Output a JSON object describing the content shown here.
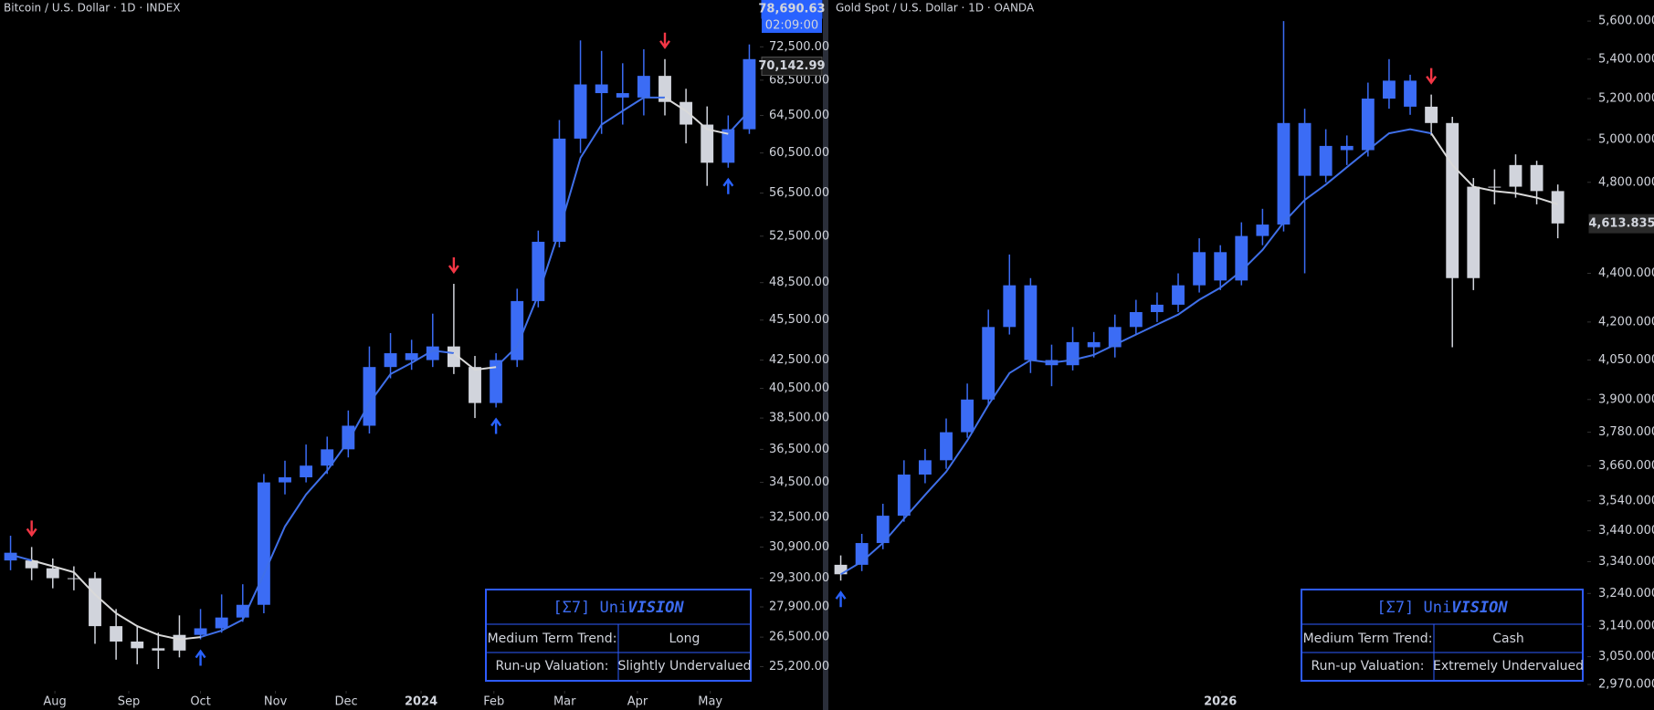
{
  "chart_data": [
    {
      "type": "candlestick",
      "title": "Bitcoin / U.S. Dollar · 1D · INDEX",
      "log": true,
      "grid": false,
      "xlim": [
        -0.5,
        35.5
      ],
      "ylim": [
        24180,
        78530
      ],
      "xticks": [
        {
          "value": 2.1,
          "label": "Aug"
        },
        {
          "value": 5.6,
          "label": "Sep"
        },
        {
          "value": 9,
          "label": "Oct"
        },
        {
          "value": 12.55,
          "label": "Nov"
        },
        {
          "value": 15.9,
          "label": "Dec"
        },
        {
          "value": 19.45,
          "label": "2024"
        },
        {
          "value": 22.9,
          "label": "Feb"
        },
        {
          "value": 26.25,
          "label": "Mar"
        },
        {
          "value": 29.7,
          "label": "Apr"
        },
        {
          "value": 33.15,
          "label": "May"
        }
      ],
      "yticks": [
        {
          "value": 72500,
          "label": "72,500.00"
        },
        {
          "value": 68500,
          "label": "68,500.00"
        },
        {
          "value": 64500,
          "label": "64,500.00"
        },
        {
          "value": 60500,
          "label": "60,500.00"
        },
        {
          "value": 56500,
          "label": "56,500.00"
        },
        {
          "value": 52500,
          "label": "52,500.00"
        },
        {
          "value": 48500,
          "label": "48,500.00"
        },
        {
          "value": 45500,
          "label": "45,500.00"
        },
        {
          "value": 42500,
          "label": "42,500.00"
        },
        {
          "value": 40500,
          "label": "40,500.00"
        },
        {
          "value": 38500,
          "label": "38,500.00"
        },
        {
          "value": 36500,
          "label": "36,500.00"
        },
        {
          "value": 34500,
          "label": "34,500.00"
        },
        {
          "value": 32500,
          "label": "32,500.00"
        },
        {
          "value": 30900,
          "label": "30,900.00"
        },
        {
          "value": 29300,
          "label": "29,300.00"
        },
        {
          "value": 27900,
          "label": "27,900.00"
        },
        {
          "value": 26500,
          "label": "26,500.00"
        },
        {
          "value": 25200,
          "label": "25,200.00"
        }
      ],
      "x": [
        0,
        1,
        2,
        3,
        4,
        5,
        6,
        7,
        8,
        9,
        10,
        11,
        12,
        13,
        14,
        15,
        16,
        17,
        18,
        19,
        20,
        21,
        22,
        23,
        24,
        25,
        26,
        27,
        28,
        29,
        30,
        31,
        32,
        33,
        34,
        35
      ],
      "open": [
        30600,
        30200,
        29800,
        29300,
        29300,
        27000,
        26300,
        26000,
        25900,
        26600,
        26900,
        27400,
        28000,
        34500,
        34800,
        35500,
        36500,
        38000,
        42000,
        43000,
        42500,
        43500,
        42000,
        39500,
        42500,
        47000,
        52000,
        62000,
        68000,
        67000,
        66500,
        69000,
        66000,
        63500,
        59500,
        63000
      ],
      "high": [
        31500,
        30900,
        30300,
        29900,
        29600,
        27800,
        27000,
        26700,
        27500,
        27800,
        28500,
        29000,
        35000,
        35800,
        36800,
        37300,
        39000,
        43500,
        44500,
        44000,
        46000,
        48400,
        42800,
        43000,
        48000,
        53000,
        64000,
        73300,
        72000,
        70500,
        72200,
        71000,
        67500,
        65500,
        64500,
        72800
      ],
      "low": [
        29700,
        29200,
        28800,
        28700,
        26200,
        25500,
        25300,
        25100,
        25600,
        26400,
        26700,
        27200,
        27600,
        33800,
        34500,
        35000,
        36000,
        37500,
        41200,
        41800,
        42000,
        41500,
        38500,
        39200,
        42000,
        46500,
        51500,
        60500,
        62500,
        63500,
        64500,
        64500,
        61500,
        57200,
        59000,
        62500
      ],
      "close": [
        30200,
        29800,
        29300,
        29300,
        27000,
        26300,
        26000,
        25900,
        26600,
        26900,
        27400,
        28000,
        34500,
        34800,
        35500,
        36500,
        38000,
        42000,
        43000,
        42500,
        43500,
        42000,
        39500,
        42500,
        47000,
        52000,
        62000,
        68000,
        67000,
        66500,
        69000,
        66000,
        63500,
        59500,
        63000,
        71000
      ],
      "candle_colors": [
        "#3b6cf5",
        "#d1d4dc",
        "#d1d4dc",
        "#d1d4dc",
        "#d1d4dc",
        "#d1d4dc",
        "#d1d4dc",
        "#d1d4dc",
        "#d1d4dc",
        "#3b6cf5",
        "#3b6cf5",
        "#3b6cf5",
        "#3b6cf5",
        "#3b6cf5",
        "#3b6cf5",
        "#3b6cf5",
        "#3b6cf5",
        "#3b6cf5",
        "#3b6cf5",
        "#3b6cf5",
        "#3b6cf5",
        "#d1d4dc",
        "#d1d4dc",
        "#3b6cf5",
        "#3b6cf5",
        "#3b6cf5",
        "#3b6cf5",
        "#3b6cf5",
        "#3b6cf5",
        "#3b6cf5",
        "#3b6cf5",
        "#d1d4dc",
        "#d1d4dc",
        "#d1d4dc",
        "#3b6cf5",
        "#3b6cf5"
      ],
      "lines": [
        {
          "color": "#3f6fe8",
          "values": [
            30500,
            30200,
            null,
            null,
            null,
            null,
            null,
            null,
            null,
            26500,
            26800,
            27300,
            29500,
            32000,
            33800,
            35200,
            37000,
            39500,
            41500,
            42300,
            43200,
            43000,
            null,
            42000,
            43500,
            47500,
            53000,
            60000,
            63500,
            65000,
            66500,
            66500,
            null,
            null,
            62500,
            65000
          ]
        },
        {
          "color": "#d9d9d9",
          "values": [
            null,
            30200,
            29900,
            29600,
            28500,
            27600,
            27000,
            26600,
            26400,
            26500,
            null,
            null,
            null,
            null,
            null,
            null,
            null,
            null,
            null,
            null,
            null,
            43000,
            41800,
            42000,
            null,
            null,
            null,
            null,
            null,
            null,
            null,
            66500,
            65000,
            63000,
            62500,
            null
          ]
        }
      ],
      "signals": [
        {
          "x": 1,
          "type": "down"
        },
        {
          "x": 9,
          "type": "up"
        },
        {
          "x": 21,
          "type": "down"
        },
        {
          "x": 23,
          "type": "up"
        },
        {
          "x": 31,
          "type": "down"
        },
        {
          "x": 34,
          "type": "up"
        }
      ],
      "price_labels": [
        {
          "value": 78690.63,
          "label": "78,690.63",
          "color": "#2962ff"
        },
        {
          "value": 70142.99,
          "label": "70,142.99",
          "color": "#1c1c1c"
        }
      ],
      "countdown": "02:09:00",
      "table": {
        "title_prefix": "[Σ7] Uni",
        "title_emphasis": "VISION",
        "trend_color": "#3d6cf2",
        "rows": [
          [
            "Medium Term Trend:",
            "Long"
          ],
          [
            "Run-up Valuation:",
            "Slightly Undervalued"
          ]
        ]
      }
    },
    {
      "type": "candlestick",
      "title": "Gold Spot / U.S. Dollar · 1D · OANDA",
      "log": true,
      "grid": false,
      "xlim": [
        -0.5,
        35.4
      ],
      "ylim": [
        2952,
        5714
      ],
      "xticks": [
        {
          "value": 18,
          "label": "2026"
        }
      ],
      "yticks": [
        {
          "value": 5600,
          "label": "5,600.000"
        },
        {
          "value": 5400,
          "label": "5,400.000"
        },
        {
          "value": 5200,
          "label": "5,200.000"
        },
        {
          "value": 5000,
          "label": "5,000.000"
        },
        {
          "value": 4800,
          "label": "4,800.000"
        },
        {
          "value": 4400,
          "label": "4,400.000"
        },
        {
          "value": 4200,
          "label": "4,200.000"
        },
        {
          "value": 4050,
          "label": "4,050.000"
        },
        {
          "value": 3900,
          "label": "3,900.000"
        },
        {
          "value": 3780,
          "label": "3,780.000"
        },
        {
          "value": 3660,
          "label": "3,660.000"
        },
        {
          "value": 3540,
          "label": "3,540.000"
        },
        {
          "value": 3440,
          "label": "3,440.000"
        },
        {
          "value": 3340,
          "label": "3,340.000"
        },
        {
          "value": 3240,
          "label": "3,240.000"
        },
        {
          "value": 3140,
          "label": "3,140.000"
        },
        {
          "value": 3050,
          "label": "3,050.000"
        },
        {
          "value": 2970,
          "label": "2,970.000"
        }
      ],
      "x": [
        0,
        1,
        2,
        3,
        4,
        5,
        6,
        7,
        8,
        9,
        10,
        11,
        12,
        13,
        14,
        15,
        16,
        17,
        18,
        19,
        20,
        21,
        22,
        23,
        24,
        25,
        26,
        27,
        28,
        29,
        30,
        31,
        32,
        33,
        34
      ],
      "open": [
        3300,
        3330,
        3400,
        3490,
        3630,
        3680,
        3780,
        3900,
        4180,
        4350,
        4050,
        4030,
        4120,
        4100,
        4180,
        4240,
        4270,
        4350,
        4490,
        4370,
        4560,
        4610,
        5080,
        4830,
        4970,
        4950,
        5200,
        5290,
        5160,
        5080,
        4380,
        4780,
        4780,
        4880,
        4760
      ],
      "high": [
        3360,
        3430,
        3530,
        3680,
        3720,
        3830,
        3960,
        4250,
        4480,
        4380,
        4110,
        4180,
        4160,
        4230,
        4290,
        4320,
        4400,
        4550,
        4520,
        4620,
        4680,
        5600,
        5150,
        5050,
        5020,
        5280,
        5400,
        5320,
        5220,
        5110,
        4820,
        4860,
        4930,
        4900,
        4790
      ],
      "low": [
        3280,
        3310,
        3380,
        3470,
        3600,
        3650,
        3760,
        3880,
        4150,
        4000,
        3950,
        4010,
        4060,
        4060,
        4150,
        4200,
        4240,
        4320,
        4330,
        4350,
        4520,
        4580,
        4400,
        4800,
        4880,
        4920,
        5150,
        5120,
        5020,
        4100,
        4330,
        4700,
        4730,
        4700,
        4550
      ],
      "close": [
        3330,
        3400,
        3490,
        3630,
        3680,
        3780,
        3900,
        4180,
        4350,
        4050,
        4030,
        4120,
        4100,
        4180,
        4240,
        4270,
        4350,
        4490,
        4370,
        4560,
        4610,
        5080,
        4830,
        4970,
        4950,
        5200,
        5290,
        5160,
        5080,
        4380,
        4780,
        4780,
        4880,
        4760,
        4615
      ],
      "candle_colors": [
        "#d1d4dc",
        "#3b6cf5",
        "#3b6cf5",
        "#3b6cf5",
        "#3b6cf5",
        "#3b6cf5",
        "#3b6cf5",
        "#3b6cf5",
        "#3b6cf5",
        "#3b6cf5",
        "#3b6cf5",
        "#3b6cf5",
        "#3b6cf5",
        "#3b6cf5",
        "#3b6cf5",
        "#3b6cf5",
        "#3b6cf5",
        "#3b6cf5",
        "#3b6cf5",
        "#3b6cf5",
        "#3b6cf5",
        "#3b6cf5",
        "#3b6cf5",
        "#3b6cf5",
        "#3b6cf5",
        "#3b6cf5",
        "#3b6cf5",
        "#3b6cf5",
        "#d1d4dc",
        "#d1d4dc",
        "#d1d4dc",
        "#d1d4dc",
        "#d1d4dc",
        "#d1d4dc",
        "#d1d4dc"
      ],
      "lines": [
        {
          "color": "#3f6fe8",
          "values": [
            3300,
            3340,
            3400,
            3480,
            3560,
            3640,
            3750,
            3880,
            4000,
            4050,
            4040,
            4050,
            4070,
            4110,
            4150,
            4190,
            4230,
            4290,
            4340,
            4410,
            4500,
            4620,
            4720,
            4790,
            4870,
            4950,
            5030,
            5050,
            5030,
            null,
            null,
            null,
            null,
            null,
            null
          ]
        },
        {
          "color": "#d9d9d9",
          "values": [
            null,
            null,
            null,
            null,
            null,
            null,
            null,
            null,
            null,
            null,
            null,
            null,
            null,
            null,
            null,
            null,
            null,
            null,
            null,
            null,
            null,
            null,
            null,
            null,
            null,
            null,
            null,
            null,
            5030,
            4880,
            4780,
            4760,
            4750,
            4730,
            4700
          ]
        }
      ],
      "signals": [
        {
          "x": 0,
          "type": "up"
        },
        {
          "x": 28,
          "type": "down"
        }
      ],
      "price_labels": [
        {
          "value": 4613.835,
          "label": "4,613.835",
          "color": "#2a2a2a"
        }
      ],
      "table": {
        "title_prefix": "[Σ7] Uni",
        "title_emphasis": "VISION",
        "trend_color": "#d1d4dc",
        "rows": [
          [
            "Medium Term Trend:",
            "Cash"
          ],
          [
            "Run-up Valuation:",
            "Extremely Undervalued"
          ]
        ]
      }
    }
  ]
}
